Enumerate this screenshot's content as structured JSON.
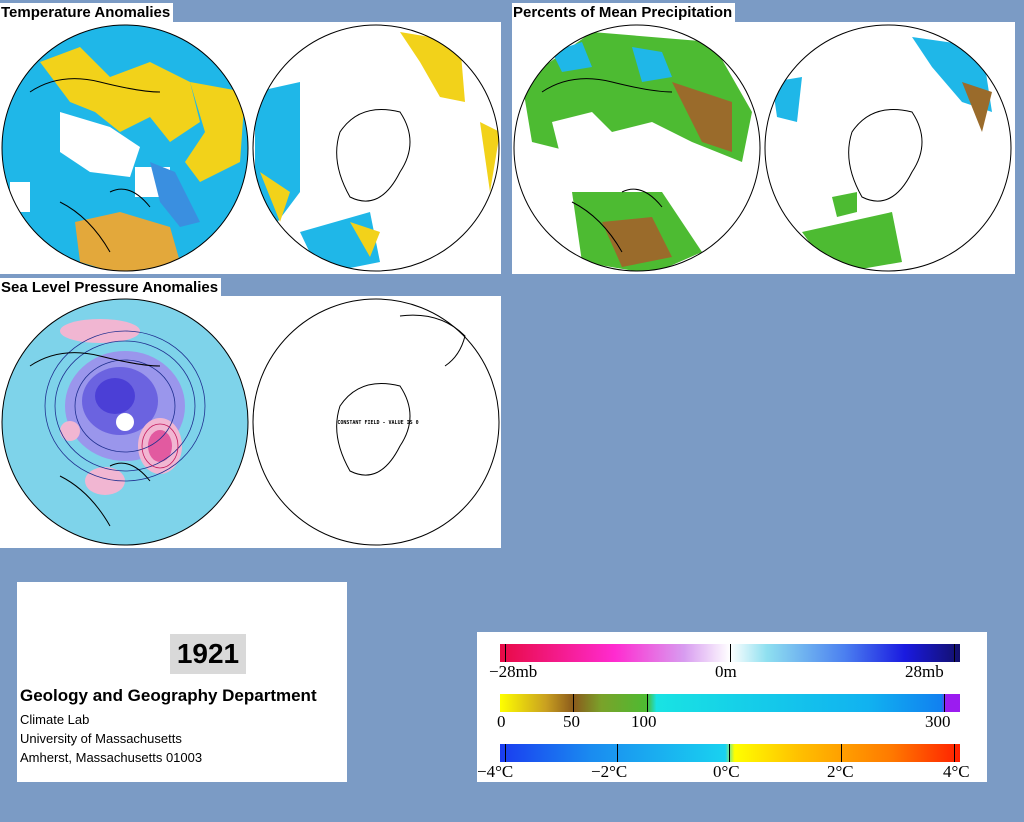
{
  "titles": {
    "temperature": "Temperature Anomalies",
    "precipitation": "Percents of Mean Precipitation",
    "pressure": "Sea Level Pressure Anomalies"
  },
  "maps": {
    "southern_slp_annotation": "CONSTANT FIELD - VALUE IS 0",
    "colors": {
      "cold": "#1fb7e8",
      "cold_strong": "#3a8fe0",
      "warm": "#f2d21a",
      "warm_strong": "#e3a83b",
      "precip_green": "#4dbb32",
      "precip_brown": "#9a6b2b",
      "low_pressure": "#4b3fd6",
      "high_pressure": "#e25aa0",
      "neutral_pressure": "#b7e6ee"
    }
  },
  "info": {
    "year": "1921",
    "department": "Geology and Geography Department",
    "lab": "Climate Lab",
    "university": "University of Massachusetts",
    "city": "Amherst, Massachusetts 01003"
  },
  "legend": {
    "pressure": {
      "min_label": "−28mb",
      "mid_label": "0m",
      "max_label": "28mb"
    },
    "precipitation": {
      "labels": [
        "0",
        "50",
        "100",
        "300"
      ]
    },
    "temperature": {
      "labels": [
        "−4°C",
        "−2°C",
        "0°C",
        "2°C",
        "4°C"
      ]
    }
  }
}
